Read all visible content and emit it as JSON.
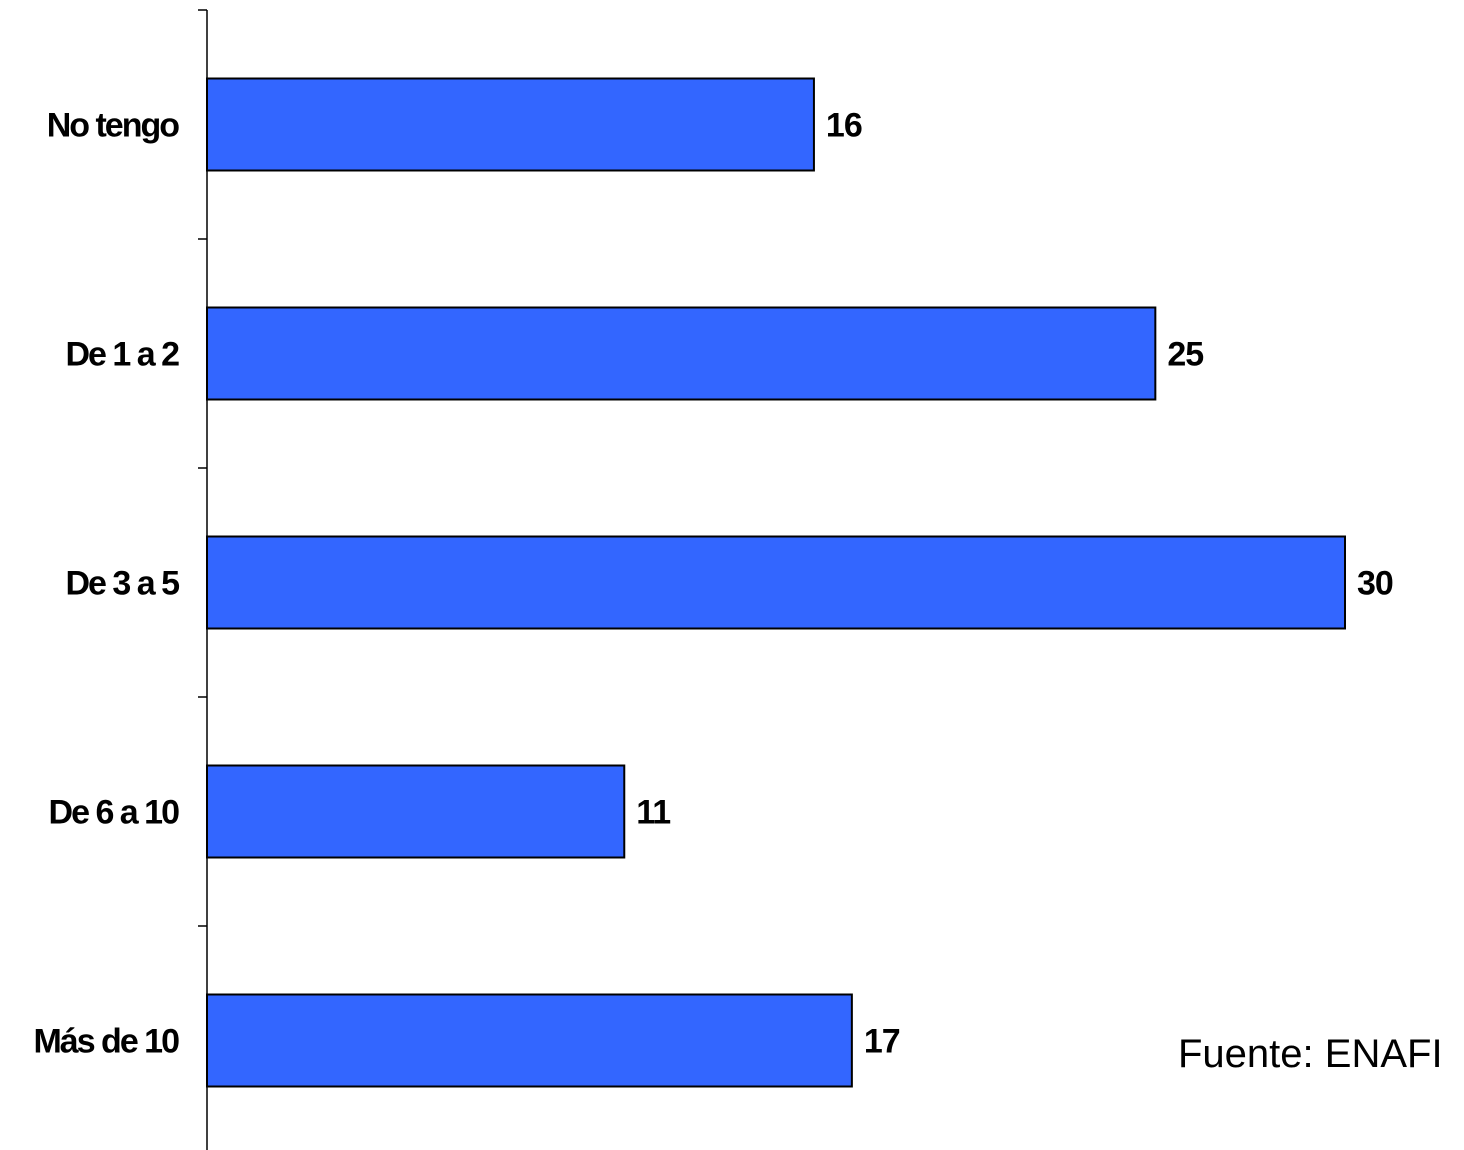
{
  "chart_data": {
    "type": "bar",
    "orientation": "horizontal",
    "categories": [
      "No tengo",
      "De 1 a 2",
      "De 3 a 5",
      "De 6 a 10",
      "Más de 10"
    ],
    "values": [
      16,
      25,
      30,
      11,
      17
    ],
    "xlim": [
      0,
      30
    ],
    "grid": false,
    "bar_color": "#3366FF",
    "data_labels": true
  },
  "source_note": "Fuente: ENAFI"
}
